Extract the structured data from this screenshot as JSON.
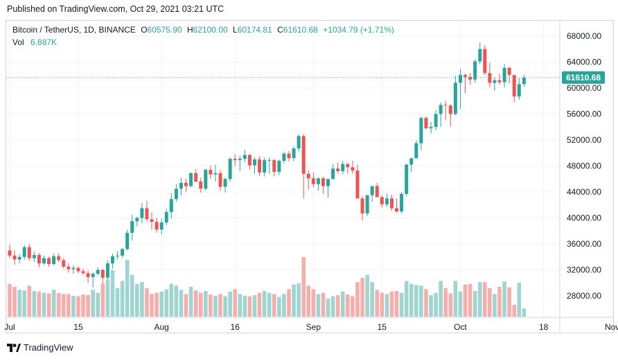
{
  "header": {
    "published": "Published on TradingView.com, Oct 29, 2021 03:21 UTC"
  },
  "legend": {
    "symbol": "Bitcoin / TetherUS, 1D, BINANCE",
    "open_label": "O",
    "open": "60575.90",
    "high_label": "H",
    "high": "62100.00",
    "low_label": "L",
    "low": "60174.81",
    "close_label": "C",
    "close": "61610.68",
    "change": "+1034.79 (+1.71%)",
    "vol_label": "Vol",
    "vol": "6.887K"
  },
  "brand": {
    "name": "TradingView",
    "icon": "tradingview-logo-icon"
  },
  "colors": {
    "up": "#26a69a",
    "down": "#ef5350",
    "up_vol": "#9fd5d0",
    "down_vol": "#f6aeac",
    "grid": "#f0f3fa",
    "axis_text": "#131722"
  },
  "chart_data": {
    "type": "candlestick",
    "title": "Bitcoin / TetherUS, 1D, BINANCE",
    "x_tick_labels": [
      "Jul",
      "15",
      "Aug",
      "16",
      "Sep",
      "15",
      "Oct",
      "18",
      "Nov"
    ],
    "y_tick_labels": [
      "68000.00",
      "64000.00",
      "60000.00",
      "56000.00",
      "52000.00",
      "48000.00",
      "44000.00",
      "40000.00",
      "36000.00",
      "32000.00",
      "28000.00"
    ],
    "ylim": [
      25000,
      71000
    ],
    "last_price": 61610.68,
    "last_price_label": "61610.68",
    "grid": true,
    "start_date": "2021-07-01",
    "volume_note": "volume bars at bottom of price pane",
    "candles": [
      [
        35000,
        35900,
        33800,
        34200
      ],
      [
        34200,
        35000,
        32800,
        33600
      ],
      [
        33600,
        34400,
        33000,
        34000
      ],
      [
        34000,
        35800,
        33600,
        35500
      ],
      [
        35500,
        36000,
        33400,
        33800
      ],
      [
        33800,
        34800,
        33200,
        34300
      ],
      [
        34300,
        34600,
        32400,
        33000
      ],
      [
        33000,
        34200,
        32800,
        33800
      ],
      [
        33800,
        34100,
        32500,
        32900
      ],
      [
        32900,
        34500,
        32700,
        34100
      ],
      [
        34100,
        34600,
        33200,
        33500
      ],
      [
        33500,
        33800,
        32200,
        32500
      ],
      [
        32500,
        33000,
        31600,
        32100
      ],
      [
        32100,
        32700,
        31400,
        32300
      ],
      [
        32300,
        32600,
        31500,
        31800
      ],
      [
        31800,
        32200,
        31200,
        31500
      ],
      [
        31500,
        31900,
        30000,
        30900
      ],
      [
        30900,
        31600,
        29300,
        31400
      ],
      [
        31400,
        32400,
        31100,
        32000
      ],
      [
        32000,
        32100,
        29800,
        30800
      ],
      [
        30800,
        33500,
        30500,
        33000
      ],
      [
        33000,
        34500,
        32200,
        34100
      ],
      [
        34100,
        34900,
        33600,
        34200
      ],
      [
        34200,
        35400,
        33900,
        35200
      ],
      [
        35200,
        38200,
        35000,
        37700
      ],
      [
        37700,
        40500,
        36500,
        39500
      ],
      [
        39500,
        40200,
        38700,
        40000
      ],
      [
        40000,
        42300,
        39200,
        41500
      ],
      [
        41500,
        42600,
        39500,
        39800
      ],
      [
        39800,
        40900,
        38200,
        39400
      ],
      [
        39400,
        40000,
        37700,
        38200
      ],
      [
        38200,
        39900,
        37500,
        39300
      ],
      [
        39300,
        41400,
        38900,
        40900
      ],
      [
        40900,
        43800,
        39900,
        42900
      ],
      [
        42900,
        45200,
        42500,
        44500
      ],
      [
        44500,
        46200,
        43500,
        45400
      ],
      [
        45400,
        46000,
        44000,
        44900
      ],
      [
        44900,
        47000,
        44700,
        46900
      ],
      [
        46900,
        47500,
        45500,
        45600
      ],
      [
        45600,
        46200,
        43900,
        44500
      ],
      [
        44500,
        47600,
        44200,
        47400
      ],
      [
        47400,
        48100,
        46000,
        46700
      ],
      [
        46700,
        48200,
        45600,
        46900
      ],
      [
        46900,
        47400,
        44200,
        44800
      ],
      [
        44800,
        46200,
        43900,
        46000
      ],
      [
        46000,
        49300,
        45600,
        49100
      ],
      [
        49100,
        49800,
        48000,
        48900
      ],
      [
        48900,
        49600,
        47200,
        49100
      ],
      [
        49100,
        50500,
        48600,
        49700
      ],
      [
        49700,
        49800,
        47500,
        48100
      ],
      [
        48100,
        49300,
        46800,
        49000
      ],
      [
        49000,
        49500,
        46500,
        47000
      ],
      [
        47000,
        49300,
        46400,
        48900
      ],
      [
        48900,
        49300,
        46800,
        48900
      ],
      [
        48900,
        49100,
        46400,
        47100
      ],
      [
        47100,
        49000,
        46600,
        48800
      ],
      [
        48800,
        50200,
        48400,
        49900
      ],
      [
        49900,
        50300,
        48700,
        49200
      ],
      [
        49200,
        51000,
        48700,
        50700
      ],
      [
        50700,
        52900,
        50200,
        52600
      ],
      [
        52600,
        52900,
        43000,
        46800
      ],
      [
        46800,
        47300,
        44400,
        46100
      ],
      [
        46100,
        47000,
        44700,
        45200
      ],
      [
        45200,
        46200,
        44200,
        46100
      ],
      [
        46100,
        46300,
        43700,
        44900
      ],
      [
        44900,
        46000,
        43100,
        46000
      ],
      [
        46000,
        48300,
        45900,
        47600
      ],
      [
        47600,
        48500,
        46800,
        47200
      ],
      [
        47200,
        48800,
        46700,
        48300
      ],
      [
        48300,
        48500,
        46800,
        47800
      ],
      [
        47800,
        48800,
        46800,
        47300
      ],
      [
        47300,
        48200,
        42900,
        43000
      ],
      [
        43000,
        43400,
        39600,
        40700
      ],
      [
        40700,
        43600,
        40300,
        43500
      ],
      [
        43500,
        44900,
        42500,
        44900
      ],
      [
        44900,
        45400,
        43500,
        43200
      ],
      [
        43200,
        43500,
        41600,
        42100
      ],
      [
        42100,
        43800,
        41700,
        43000
      ],
      [
        43000,
        43600,
        41100,
        41500
      ],
      [
        41500,
        43000,
        40800,
        41000
      ],
      [
        41000,
        44000,
        40700,
        43700
      ],
      [
        43700,
        48300,
        43300,
        48200
      ],
      [
        48200,
        49200,
        47100,
        49200
      ],
      [
        49200,
        51900,
        49100,
        51500
      ],
      [
        51500,
        55600,
        50400,
        55400
      ],
      [
        55400,
        55600,
        53700,
        53800
      ],
      [
        53800,
        54800,
        53000,
        54000
      ],
      [
        54000,
        56600,
        53500,
        56000
      ],
      [
        56000,
        57800,
        54000,
        57400
      ],
      [
        57400,
        58000,
        55100,
        57300
      ],
      [
        57300,
        57500,
        54000,
        56000
      ],
      [
        56000,
        61900,
        55800,
        60800
      ],
      [
        60800,
        62900,
        56800,
        62000
      ],
      [
        62000,
        62200,
        59200,
        61700
      ],
      [
        61700,
        62300,
        60500,
        61300
      ],
      [
        61300,
        64400,
        60800,
        64100
      ],
      [
        64100,
        67000,
        63600,
        66000
      ],
      [
        66000,
        66600,
        62000,
        62300
      ],
      [
        62300,
        63900,
        60100,
        60800
      ],
      [
        60800,
        61600,
        59600,
        61200
      ],
      [
        61200,
        62200,
        60500,
        60900
      ],
      [
        60900,
        63700,
        60100,
        63100
      ],
      [
        63100,
        63300,
        60700,
        62000
      ],
      [
        62000,
        62000,
        57800,
        58700
      ],
      [
        58700,
        61500,
        58200,
        60600
      ],
      [
        60600,
        62100,
        60200,
        61600
      ]
    ],
    "volumes": [
      55,
      50,
      45,
      44,
      52,
      43,
      42,
      40,
      39,
      45,
      40,
      38,
      38,
      35,
      34,
      37,
      36,
      45,
      40,
      55,
      62,
      78,
      48,
      60,
      95,
      70,
      55,
      58,
      48,
      38,
      40,
      42,
      46,
      55,
      52,
      45,
      38,
      50,
      44,
      40,
      43,
      37,
      35,
      38,
      34,
      42,
      46,
      38,
      35,
      34,
      36,
      40,
      43,
      40,
      38,
      33,
      38,
      46,
      54,
      56,
      100,
      52,
      46,
      38,
      40,
      30,
      34,
      36,
      42,
      37,
      34,
      58,
      65,
      70,
      58,
      45,
      40,
      38,
      42,
      43,
      40,
      60,
      55,
      53,
      52,
      46,
      36,
      40,
      60,
      48,
      39,
      60,
      42,
      54,
      55,
      43,
      58,
      58,
      48,
      38,
      50,
      59,
      49,
      20,
      57,
      14
    ]
  }
}
